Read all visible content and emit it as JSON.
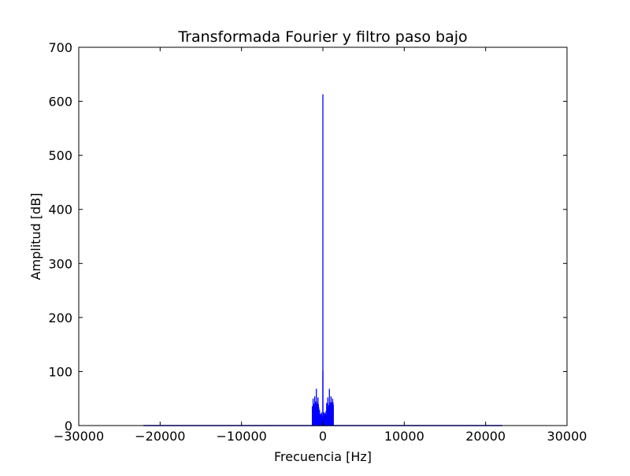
{
  "chart_data": {
    "type": "line",
    "title": "Transformada Fourier y filtro paso bajo",
    "xlabel": "Frecuencia [Hz]",
    "ylabel": "Amplitud [dB]",
    "xlim": [
      -30000,
      30000
    ],
    "ylim": [
      0,
      700
    ],
    "xticks": [
      -30000,
      -20000,
      -10000,
      0,
      10000,
      20000,
      30000
    ],
    "xtick_labels": [
      "−30000",
      "−20000",
      "−10000",
      "0",
      "10000",
      "20000",
      "30000"
    ],
    "yticks": [
      0,
      100,
      200,
      300,
      400,
      500,
      600,
      700
    ],
    "ytick_labels": [
      "0",
      "100",
      "200",
      "300",
      "400",
      "500",
      "600",
      "700"
    ],
    "grid": false,
    "legend": "none",
    "series": [
      {
        "color": "#0000ff",
        "data_range_hz": [
          -22050,
          22050
        ],
        "peaks": [
          {
            "x": 0,
            "y": 613
          },
          {
            "x": 0,
            "y": 101
          },
          {
            "x": -800,
            "y": 68
          },
          {
            "x": 800,
            "y": 68
          },
          {
            "x": -1000,
            "y": 54
          },
          {
            "x": 1000,
            "y": 54
          },
          {
            "x": -600,
            "y": 52
          },
          {
            "x": 600,
            "y": 52
          },
          {
            "x": -1200,
            "y": 50
          },
          {
            "x": 1200,
            "y": 50
          }
        ],
        "band_hz": [
          -1300,
          1300
        ],
        "band_level": 45
      }
    ]
  }
}
